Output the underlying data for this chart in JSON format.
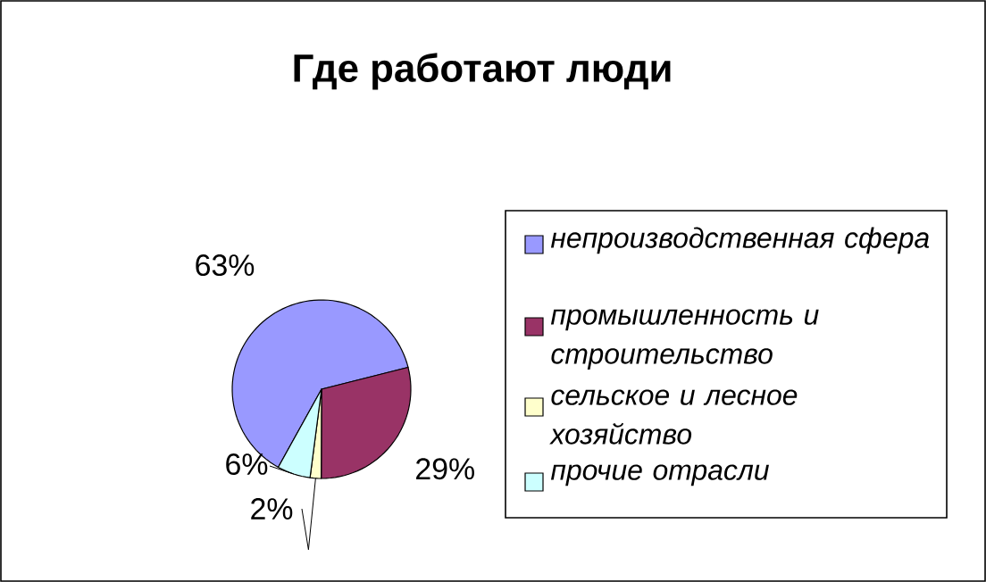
{
  "chart_data": {
    "type": "pie",
    "title": "Где работают люди",
    "categories": [
      "непроизводственная сфера",
      "промышленность и строительство",
      "сельское и лесное хозяйство",
      "прочие отрасли"
    ],
    "values": [
      63,
      29,
      2,
      6
    ],
    "value_labels": [
      "63%",
      "29%",
      "2%",
      "6%"
    ],
    "colors": [
      "#9999ff",
      "#993366",
      "#ffffcc",
      "#ccffff"
    ],
    "legend": "right"
  }
}
